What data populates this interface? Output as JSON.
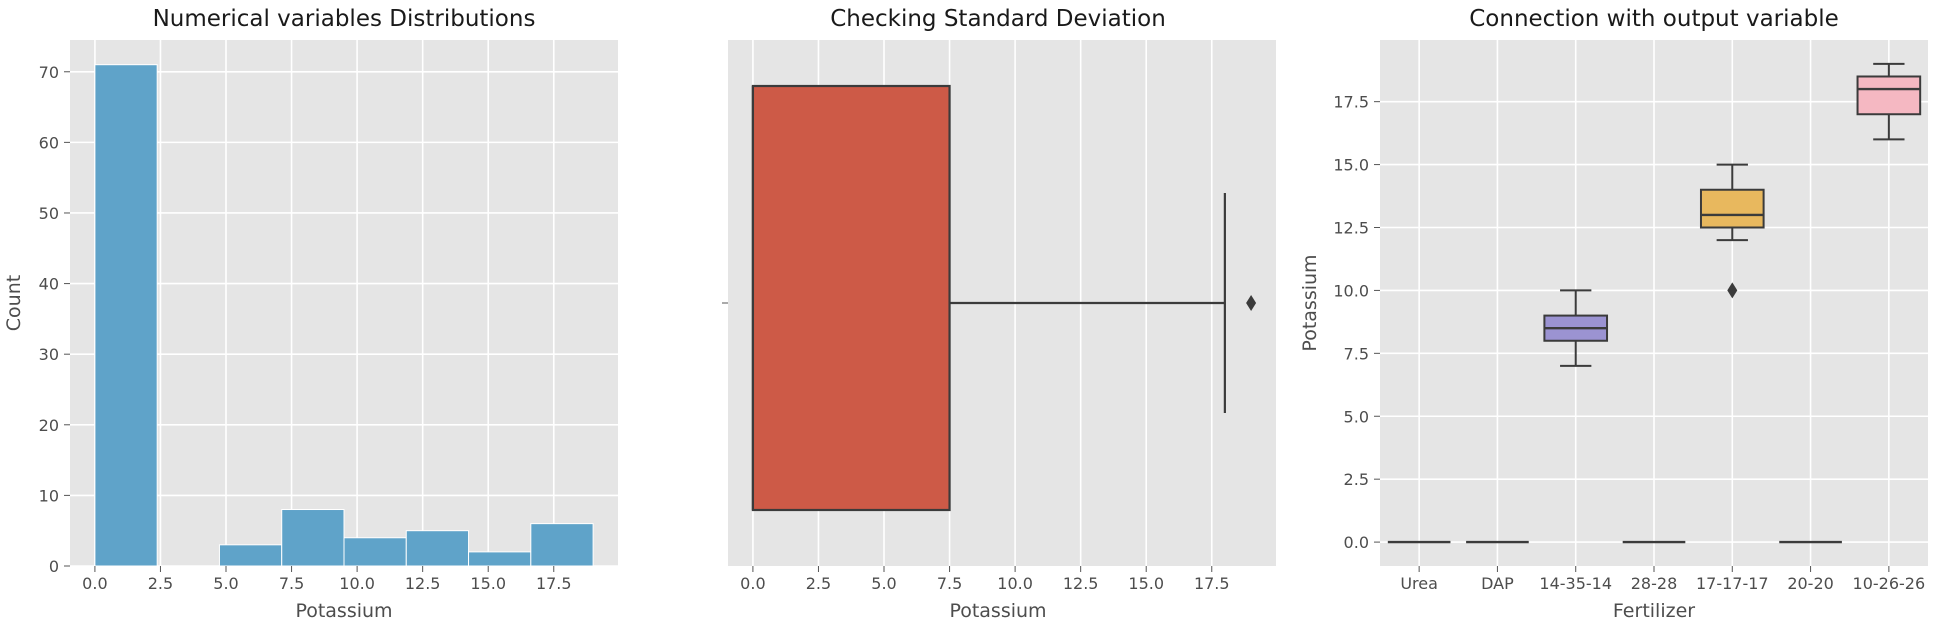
{
  "chart_data": [
    {
      "type": "histogram",
      "title": "Numerical variables Distributions",
      "xlabel": "Potassium",
      "ylabel": "Count",
      "xlim": [
        -0.95,
        19.95
      ],
      "ylim": [
        0,
        74.5
      ],
      "xticks": [
        {
          "value": 0,
          "label": "0.0"
        },
        {
          "value": 2.5,
          "label": "2.5"
        },
        {
          "value": 5,
          "label": "5.0"
        },
        {
          "value": 7.5,
          "label": "7.5"
        },
        {
          "value": 10,
          "label": "10.0"
        },
        {
          "value": 12.5,
          "label": "12.5"
        },
        {
          "value": 15,
          "label": "15.0"
        },
        {
          "value": 17.5,
          "label": "17.5"
        }
      ],
      "yticks": [
        {
          "value": 0,
          "label": "0"
        },
        {
          "value": 10,
          "label": "10"
        },
        {
          "value": 20,
          "label": "20"
        },
        {
          "value": 30,
          "label": "30"
        },
        {
          "value": 40,
          "label": "40"
        },
        {
          "value": 50,
          "label": "50"
        },
        {
          "value": 60,
          "label": "60"
        },
        {
          "value": 70,
          "label": "70"
        }
      ],
      "bins": [
        {
          "x0": 0.0,
          "x1": 2.375,
          "count": 71
        },
        {
          "x0": 2.375,
          "x1": 4.75,
          "count": 0
        },
        {
          "x0": 4.75,
          "x1": 7.125,
          "count": 3
        },
        {
          "x0": 7.125,
          "x1": 9.5,
          "count": 8
        },
        {
          "x0": 9.5,
          "x1": 11.875,
          "count": 4
        },
        {
          "x0": 11.875,
          "x1": 14.25,
          "count": 5
        },
        {
          "x0": 14.25,
          "x1": 16.625,
          "count": 2
        },
        {
          "x0": 16.625,
          "x1": 19.0,
          "count": 6
        }
      ],
      "color": "#5fa3c9",
      "grid": true
    },
    {
      "type": "box",
      "title": "Checking Standard Deviation",
      "xlabel": "Potassium",
      "xlim": [
        -0.95,
        19.95
      ],
      "xticks": [
        {
          "value": 0,
          "label": "0.0"
        },
        {
          "value": 2.5,
          "label": "2.5"
        },
        {
          "value": 5,
          "label": "5.0"
        },
        {
          "value": 7.5,
          "label": "7.5"
        },
        {
          "value": 10,
          "label": "10.0"
        },
        {
          "value": 12.5,
          "label": "12.5"
        },
        {
          "value": 15,
          "label": "15.0"
        },
        {
          "value": 17.5,
          "label": "17.5"
        }
      ],
      "box": {
        "min": 0,
        "q1": 0,
        "median": 0,
        "q3": 7.5,
        "max": 18,
        "outliers": [
          19
        ]
      },
      "color": "#cd5a47",
      "grid": true
    },
    {
      "type": "box",
      "title": "Connection with output variable",
      "xlabel": "Fertilizer",
      "ylabel": "Potassium",
      "ylim": [
        -0.95,
        19.95
      ],
      "yticks": [
        {
          "value": 0,
          "label": "0.0"
        },
        {
          "value": 2.5,
          "label": "2.5"
        },
        {
          "value": 5,
          "label": "5.0"
        },
        {
          "value": 7.5,
          "label": "7.5"
        },
        {
          "value": 10,
          "label": "10.0"
        },
        {
          "value": 12.5,
          "label": "12.5"
        },
        {
          "value": 15,
          "label": "15.0"
        },
        {
          "value": 17.5,
          "label": "17.5"
        }
      ],
      "categories": [
        "Urea",
        "DAP",
        "14-35-14",
        "28-28",
        "17-17-17",
        "20-20",
        "10-26-26"
      ],
      "boxes": [
        {
          "min": 0,
          "q1": 0,
          "median": 0,
          "q3": 0,
          "max": 0,
          "outliers": [],
          "color": "#c0504d"
        },
        {
          "min": 0,
          "q1": 0,
          "median": 0,
          "q3": 0,
          "max": 0,
          "outliers": [],
          "color": "#5d8fc1"
        },
        {
          "min": 7,
          "q1": 8,
          "median": 8.5,
          "q3": 9,
          "max": 10,
          "outliers": [],
          "color": "#9b93d2"
        },
        {
          "min": 0,
          "q1": 0,
          "median": 0,
          "q3": 0,
          "max": 0,
          "outliers": [],
          "color": "#7f7f7f"
        },
        {
          "min": 12,
          "q1": 12.5,
          "median": 13,
          "q3": 14,
          "max": 15,
          "outliers": [
            10
          ],
          "color": "#e8b85e"
        },
        {
          "min": 0,
          "q1": 0,
          "median": 0,
          "q3": 0,
          "max": 0,
          "outliers": [],
          "color": "#8fb35b"
        },
        {
          "min": 16,
          "q1": 17,
          "median": 18,
          "q3": 18.5,
          "max": 19,
          "outliers": [],
          "color": "#f5b8c2"
        }
      ],
      "grid": true
    }
  ]
}
